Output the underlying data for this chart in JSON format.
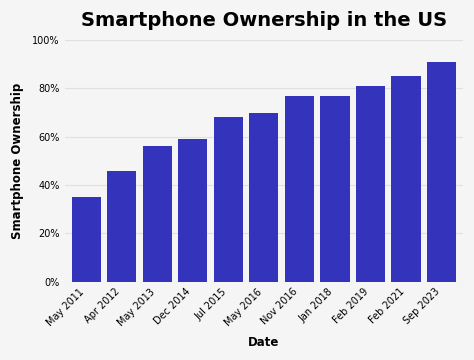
{
  "title": "Smartphone Ownership in the US",
  "xlabel": "Date",
  "ylabel": "Smartphone Ownership",
  "categories": [
    "May 2011",
    "Apr 2012",
    "May 2013",
    "Dec 2014",
    "Jul 2015",
    "May 2016",
    "Nov 2016",
    "Jan 2018",
    "Feb 2019",
    "Feb 2021",
    "Sep 2023"
  ],
  "values": [
    35,
    46,
    56,
    59,
    68,
    70,
    77,
    77,
    81,
    85,
    91
  ],
  "bar_color": "#3333BB",
  "background_color": "#f5f5f5",
  "plot_bg_color": "#f5f5f5",
  "ylim": [
    0,
    100
  ],
  "yticks": [
    0,
    20,
    40,
    60,
    80,
    100
  ],
  "title_fontsize": 14,
  "axis_label_fontsize": 8.5,
  "tick_fontsize": 7,
  "bar_width": 0.82
}
